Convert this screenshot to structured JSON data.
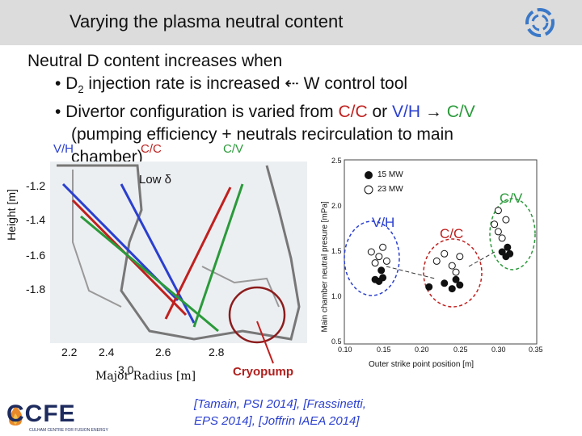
{
  "slide": {
    "title": "Varying the plasma neutral content",
    "bullets": {
      "line1": "Neutral D content increases when",
      "line2_pre": "• D",
      "line2_sub": "2",
      "line2_post": " injection rate is increased ",
      "line2_arrow": "⇠",
      "line2_tail": " W control tool",
      "line3_pre": "• Divertor configuration is varied from ",
      "line3_cc": "C/C",
      "line3_or": " or ",
      "line3_vh": "V/H",
      "line3_arrow": " → ",
      "line3_cv": "C/V",
      "line4": "(pumping efficiency + neutrals recirculation to main",
      "line5": "chamber)"
    },
    "config_labels": {
      "vh": "V/H",
      "cc": "C/C",
      "cv": "C/V"
    },
    "geometry_plot": {
      "annotation": "Low δ",
      "ylabel": "Height [m]",
      "xlabel": "Major Radius [m]",
      "yticks": [
        "-1.2",
        "-1.4",
        "-1.6",
        "-1.8"
      ],
      "xticks": [
        "2.2",
        "2.4",
        "2.6",
        "2.8",
        "3.0"
      ],
      "cryopump_label": "Cryopump"
    },
    "chart_data": {
      "type": "scatter",
      "title": "",
      "xlabel": "Outer strike point position [m]",
      "ylabel": "Main chamber neutral presure [mPa]",
      "xlim": [
        0.1,
        0.35
      ],
      "ylim": [
        0.5,
        2.5
      ],
      "xticks": [
        "0.10",
        "0.15",
        "0.20",
        "0.25",
        "0.30",
        "0.35"
      ],
      "yticks": [
        "0.5",
        "1.0",
        "1.5",
        "2.0",
        "2.5"
      ],
      "legend": [
        "15 MW",
        "23 MW"
      ],
      "group_labels": [
        "V/H",
        "C/C",
        "C/V"
      ],
      "series": [
        {
          "name": "15 MW",
          "points": [
            [
              0.14,
              1.2
            ],
            [
              0.145,
              1.18
            ],
            [
              0.15,
              1.22
            ],
            [
              0.148,
              1.3
            ],
            [
              0.21,
              1.12
            ],
            [
              0.23,
              1.16
            ],
            [
              0.24,
              1.1
            ],
            [
              0.245,
              1.2
            ],
            [
              0.25,
              1.14
            ],
            [
              0.305,
              1.5
            ],
            [
              0.31,
              1.45
            ],
            [
              0.315,
              1.48
            ],
            [
              0.312,
              1.55
            ]
          ]
        },
        {
          "name": "23 MW",
          "points": [
            [
              0.135,
              1.5
            ],
            [
              0.145,
              1.45
            ],
            [
              0.15,
              1.55
            ],
            [
              0.14,
              1.38
            ],
            [
              0.155,
              1.4
            ],
            [
              0.22,
              1.4
            ],
            [
              0.23,
              1.48
            ],
            [
              0.24,
              1.35
            ],
            [
              0.25,
              1.45
            ],
            [
              0.245,
              1.28
            ],
            [
              0.295,
              1.8
            ],
            [
              0.3,
              1.72
            ],
            [
              0.31,
              1.85
            ],
            [
              0.305,
              1.65
            ],
            [
              0.3,
              1.95
            ]
          ]
        }
      ]
    },
    "citation": {
      "line1": "[Tamain, PSI 2014], [Frassinetti,",
      "line2": "EPS 2014], [Joffrin IAEA 2014]"
    },
    "logo": {
      "name": "CCFE",
      "subtitle": "CULHAM CENTRE FOR FUSION ENERGY"
    },
    "colors": {
      "red": "#c0201e",
      "blue": "#2a3fd0",
      "green": "#2a9a3a"
    }
  }
}
